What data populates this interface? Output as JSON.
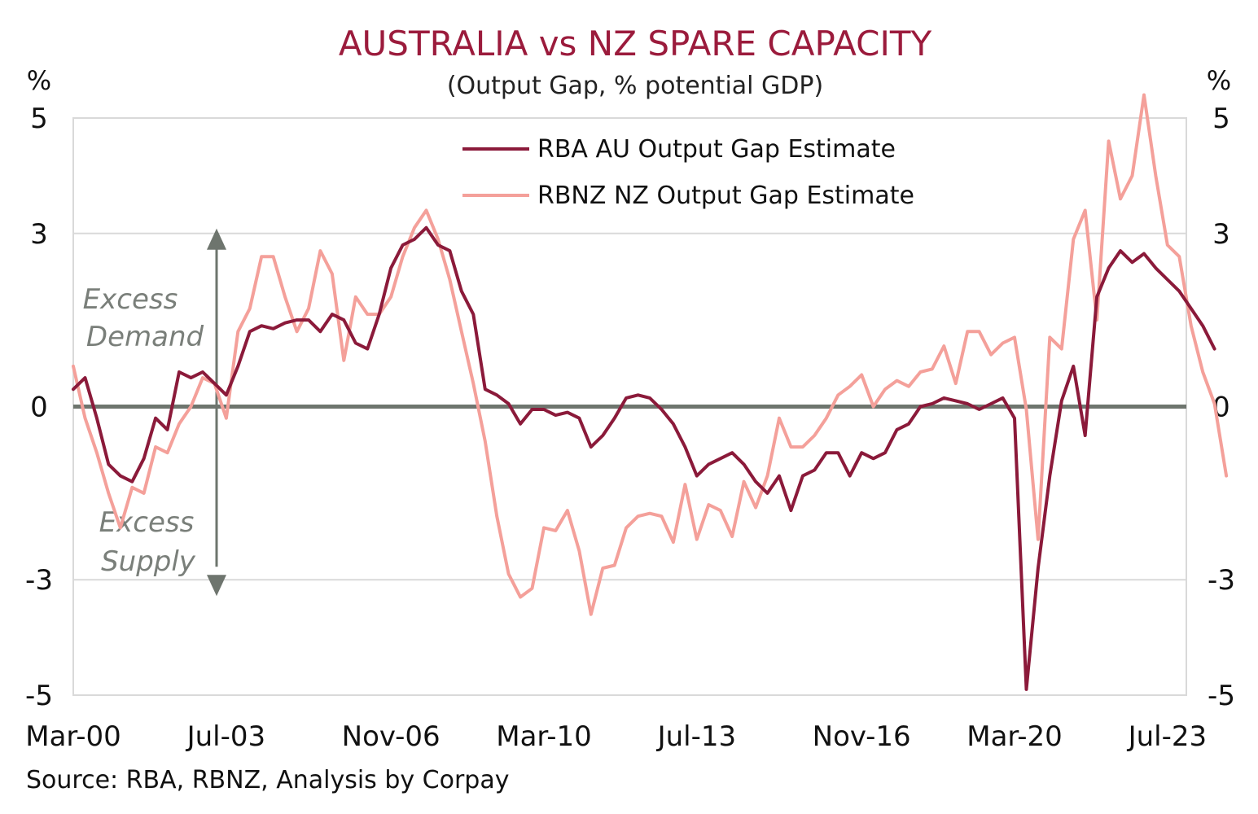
{
  "chart_data": {
    "type": "line",
    "title": "AUSTRALIA vs NZ SPARE CAPACITY",
    "subtitle": "(Output Gap, % potential GDP)",
    "ylabel_left": "%",
    "ylabel_right": "%",
    "ylim": [
      -5,
      5
    ],
    "y_ticks": [
      "5",
      "3",
      "0",
      "-3",
      "-5"
    ],
    "y_tick_values": [
      5,
      3,
      0,
      -3,
      -5
    ],
    "x_ticks": [
      "Mar-00",
      "Jul-03",
      "Nov-06",
      "Mar-10",
      "Jul-13",
      "Nov-16",
      "Mar-20",
      "Jul-23"
    ],
    "x_tick_quarter_index": [
      0,
      13,
      27,
      40,
      53,
      67,
      80,
      93
    ],
    "x_start": "Mar-00",
    "frequency": "quarterly",
    "grid": true,
    "legend_position": "top-center",
    "annotations": {
      "excess_demand": [
        "Excess",
        "Demand"
      ],
      "excess_supply": [
        "Excess",
        "Supply"
      ]
    },
    "source": "Source: RBA, RBNZ, Analysis by Corpay",
    "colors": {
      "au": "#8b1a3a",
      "nz": "#f4a09a",
      "zero_line": "#6e756e",
      "arrow": "#6e756e",
      "grid": "#d9d9d9",
      "title": "#9b1b3c"
    },
    "series": [
      {
        "name": "RBA AU Output Gap Estimate",
        "values": [
          0.3,
          0.5,
          -0.2,
          -1.0,
          -1.2,
          -1.3,
          -0.9,
          -0.2,
          -0.4,
          0.6,
          0.5,
          0.6,
          0.4,
          0.2,
          0.7,
          1.3,
          1.4,
          1.35,
          1.45,
          1.5,
          1.5,
          1.3,
          1.6,
          1.5,
          1.1,
          1.0,
          1.6,
          2.4,
          2.8,
          2.9,
          3.1,
          2.8,
          2.7,
          2.0,
          1.6,
          0.3,
          0.2,
          0.05,
          -0.3,
          -0.05,
          -0.05,
          -0.15,
          -0.1,
          -0.2,
          -0.7,
          -0.5,
          -0.2,
          0.15,
          0.2,
          0.15,
          -0.05,
          -0.3,
          -0.7,
          -1.2,
          -1.0,
          -0.9,
          -0.8,
          -1.0,
          -1.3,
          -1.5,
          -1.2,
          -1.8,
          -1.2,
          -1.1,
          -0.8,
          -0.8,
          -1.2,
          -0.8,
          -0.9,
          -0.8,
          -0.4,
          -0.3,
          0.0,
          0.05,
          0.15,
          0.1,
          0.05,
          -0.05,
          0.05,
          0.15,
          -0.2,
          -4.9,
          -2.8,
          -1.2,
          0.1,
          0.7,
          -0.5,
          1.9,
          2.4,
          2.7,
          2.5,
          2.65,
          2.4,
          2.2,
          2.0,
          1.7,
          1.4,
          1.0
        ]
      },
      {
        "name": "RBNZ NZ Output Gap Estimate",
        "values": [
          0.7,
          -0.2,
          -0.8,
          -1.5,
          -2.1,
          -1.4,
          -1.5,
          -0.7,
          -0.8,
          -0.3,
          0.0,
          0.5,
          0.4,
          -0.2,
          1.3,
          1.7,
          2.6,
          2.6,
          1.9,
          1.3,
          1.7,
          2.7,
          2.3,
          0.8,
          1.9,
          1.6,
          1.6,
          1.9,
          2.6,
          3.1,
          3.4,
          2.9,
          2.2,
          1.3,
          0.4,
          -0.6,
          -1.9,
          -2.9,
          -3.3,
          -3.15,
          -2.1,
          -2.15,
          -1.8,
          -2.5,
          -3.6,
          -2.8,
          -2.75,
          -2.1,
          -1.9,
          -1.85,
          -1.9,
          -2.35,
          -1.35,
          -2.3,
          -1.7,
          -1.8,
          -2.25,
          -1.3,
          -1.75,
          -1.2,
          -0.2,
          -0.7,
          -0.7,
          -0.5,
          -0.2,
          0.2,
          0.35,
          0.55,
          0.0,
          0.3,
          0.45,
          0.35,
          0.6,
          0.65,
          1.05,
          0.4,
          1.3,
          1.3,
          0.9,
          1.1,
          1.2,
          -0.05,
          -2.3,
          1.2,
          1.0,
          2.9,
          3.4,
          1.5,
          4.6,
          3.6,
          4.0,
          5.4,
          4.0,
          2.8,
          2.6,
          1.4,
          0.6,
          0.05,
          -1.2
        ]
      }
    ]
  }
}
